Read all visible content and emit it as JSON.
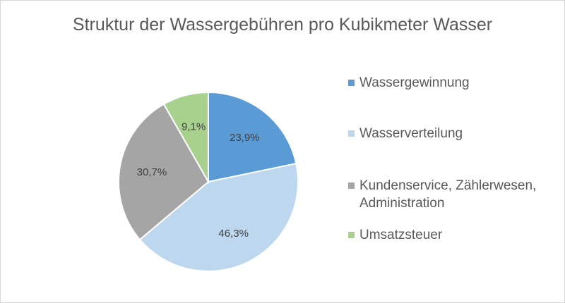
{
  "chart_data": {
    "type": "pie",
    "title": "Struktur der Wassergebühren pro Kubikmeter Wasser",
    "slices": [
      {
        "name": "Wassergewinnung",
        "value": 23.9,
        "label": "23,9%",
        "color": "#5b9bd5"
      },
      {
        "name": "Wasserverteilung",
        "value": 46.3,
        "label": "46,3%",
        "color": "#bdd7ee"
      },
      {
        "name": "Kundenservice, Zählerwesen, Administration",
        "value": 30.7,
        "label": "30,7%",
        "color": "#a5a5a5"
      },
      {
        "name": "Umsatzsteuer",
        "value": 9.1,
        "label": "9,1%",
        "color": "#a9d18e"
      }
    ],
    "legend_position": "right"
  }
}
